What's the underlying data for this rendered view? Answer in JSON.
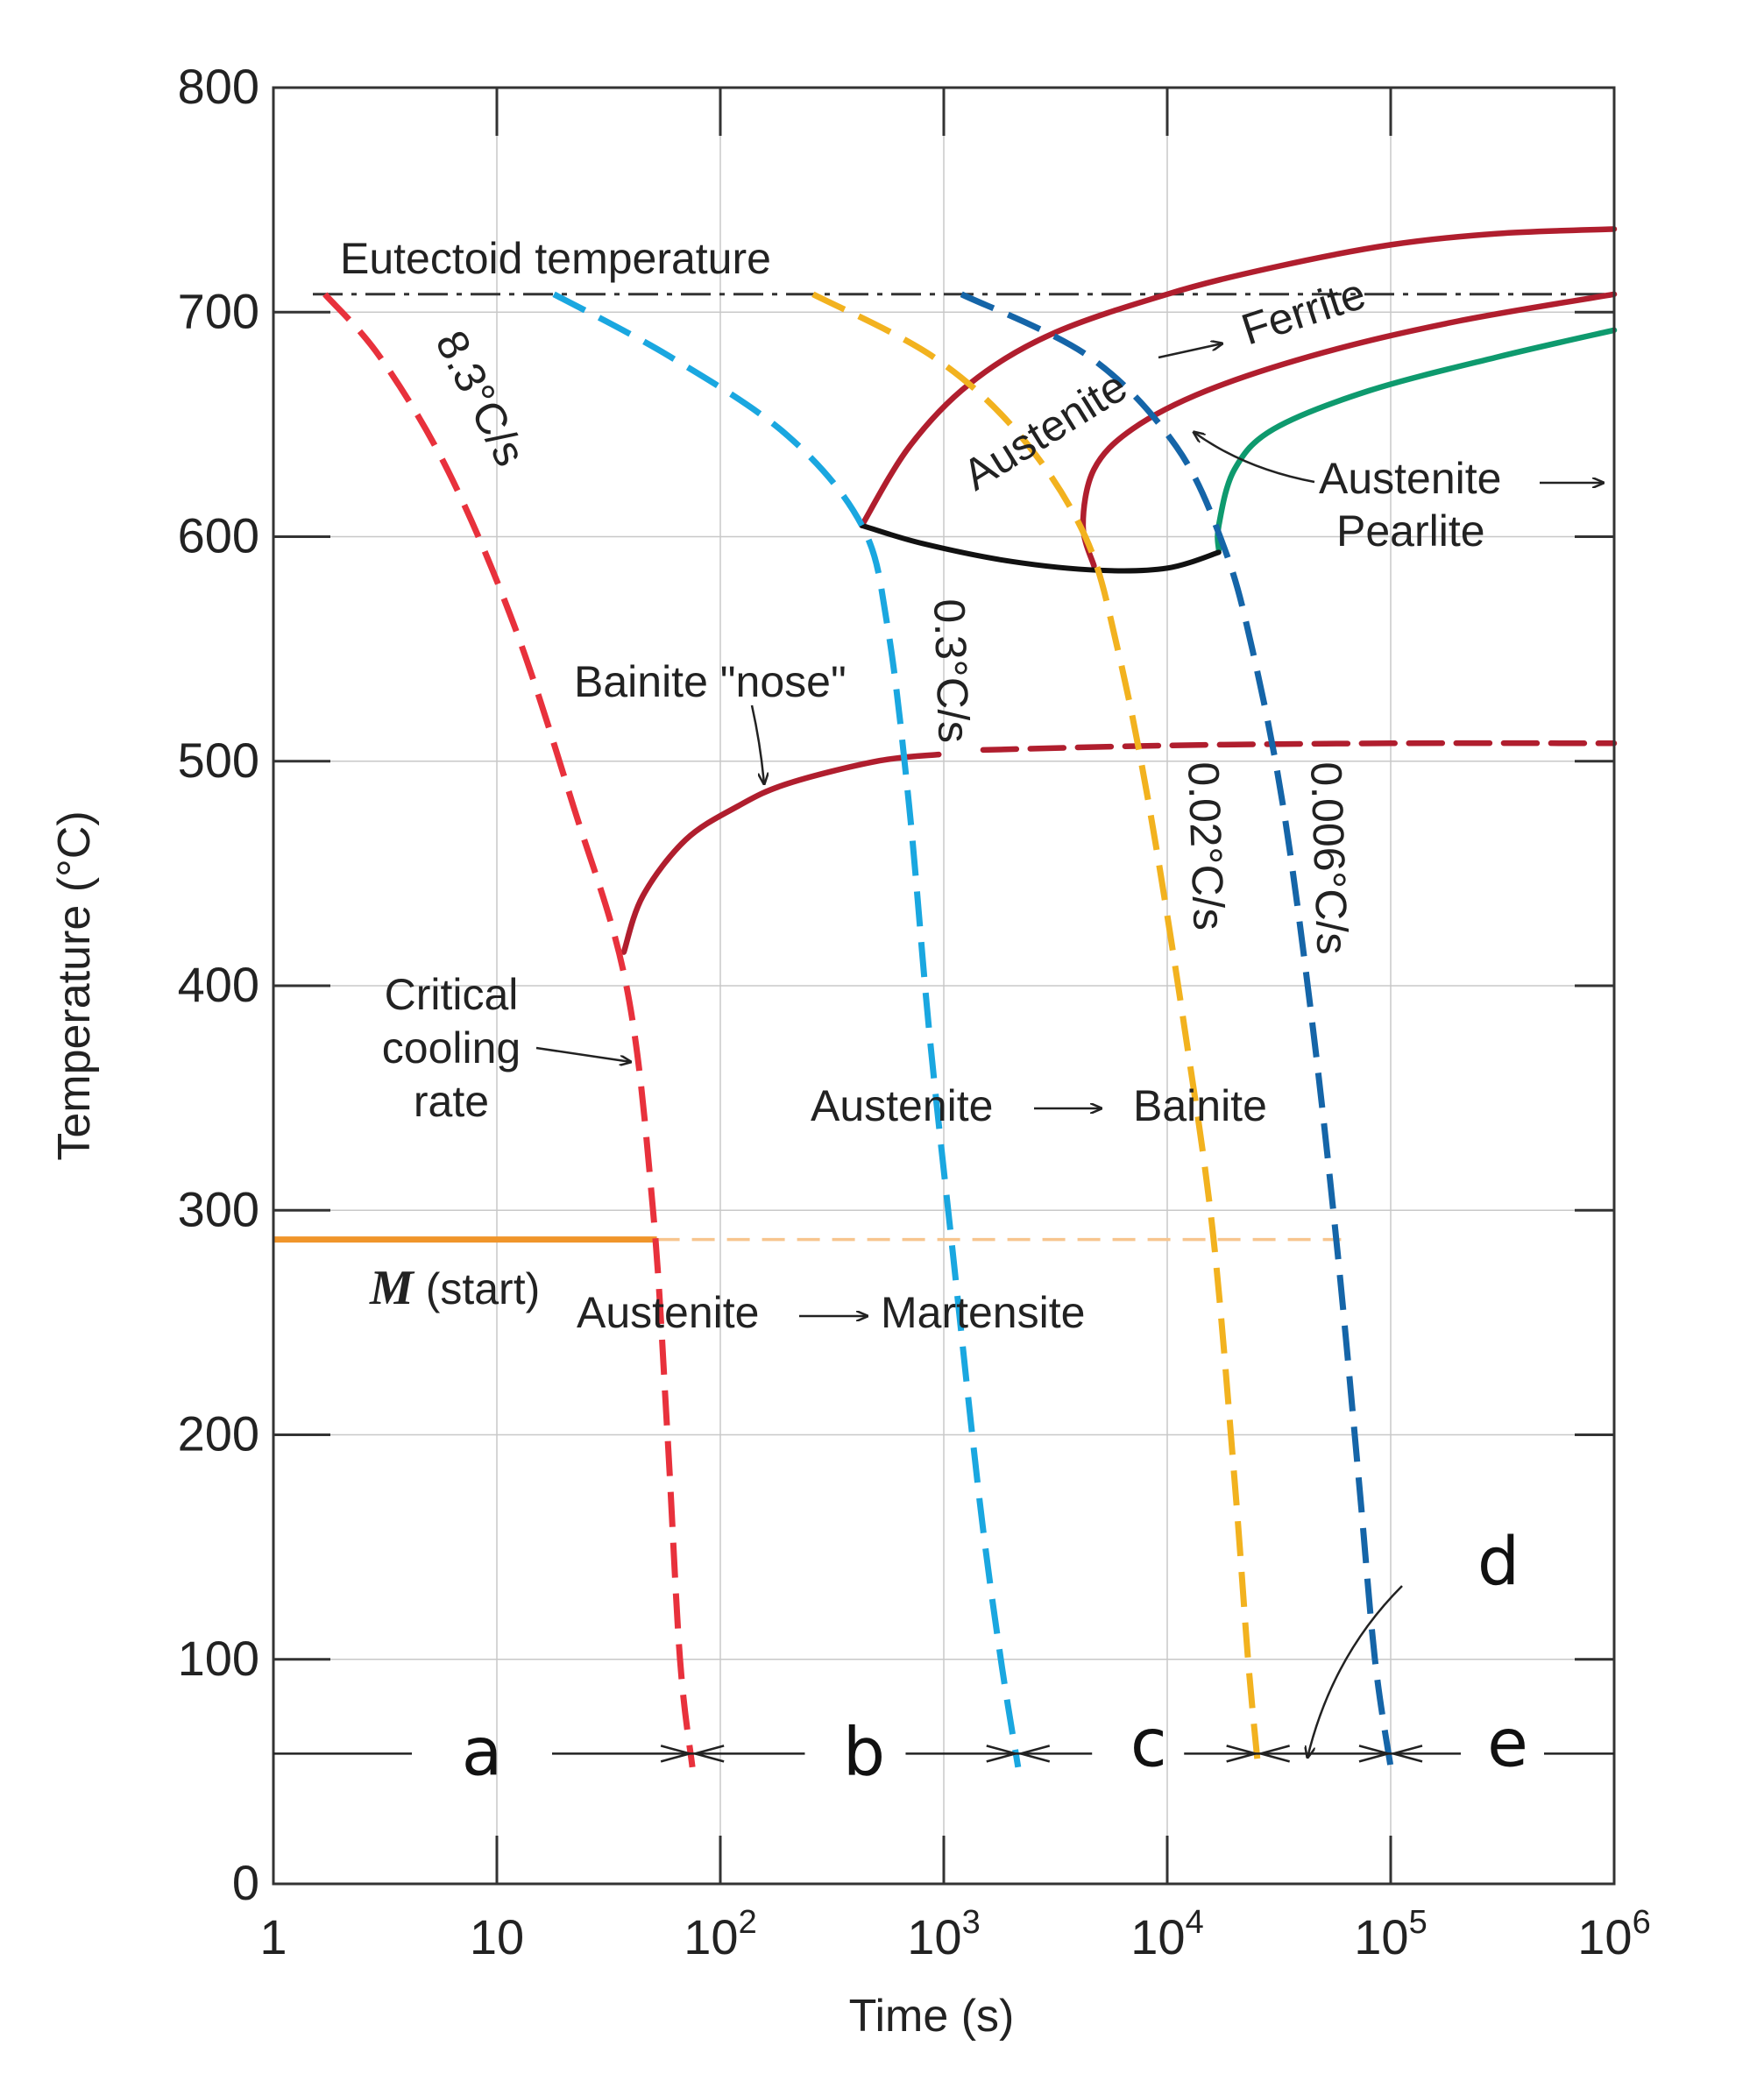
{
  "chart_data": {
    "type": "line",
    "title": "",
    "xlabel": "Time (s)",
    "ylabel": "Temperature (°C)",
    "xscale": "log",
    "xlim": [
      1,
      1000000
    ],
    "ylim": [
      0,
      800
    ],
    "x_ticks": [
      {
        "value": 1,
        "base": "1",
        "exp": ""
      },
      {
        "value": 10,
        "base": "10",
        "exp": ""
      },
      {
        "value": 100,
        "base": "10",
        "exp": "2"
      },
      {
        "value": 1000,
        "base": "10",
        "exp": "3"
      },
      {
        "value": 10000,
        "base": "10",
        "exp": "4"
      },
      {
        "value": 100000,
        "base": "10",
        "exp": "5"
      },
      {
        "value": 1000000,
        "base": "10",
        "exp": "6"
      }
    ],
    "y_ticks": [
      "0",
      "100",
      "200",
      "300",
      "400",
      "500",
      "600",
      "700",
      "800"
    ],
    "grid": true,
    "colors": {
      "red_cooling": "#e8313c",
      "cyan_cooling": "#1aa7e0",
      "yellow_cooling": "#f2b21f",
      "navy_cooling": "#1565a8",
      "transformation": "#b01e2e",
      "pearlite_start": "#0e9a6e",
      "boundary": "#111111",
      "m_start": "#f0952a",
      "m_start_dashed": "#f7c58e",
      "eutectoid": "#333333"
    },
    "cooling_curves": [
      {
        "name": "8.3°C/s",
        "color": "red_cooling",
        "points": [
          [
            1.7,
            708
          ],
          [
            3,
            680
          ],
          [
            6,
            630
          ],
          [
            12,
            560
          ],
          [
            22,
            480
          ],
          [
            38,
            400
          ],
          [
            50,
            300
          ],
          [
            58,
            200
          ],
          [
            66,
            100
          ],
          [
            75,
            52
          ]
        ]
      },
      {
        "name": "0.3°C/s",
        "color": "cyan_cooling",
        "points": [
          [
            18,
            708
          ],
          [
            60,
            680
          ],
          [
            200,
            645
          ],
          [
            430,
            605
          ],
          [
            560,
            560
          ],
          [
            700,
            480
          ],
          [
            860,
            380
          ],
          [
            1100,
            280
          ],
          [
            1450,
            170
          ],
          [
            1800,
            100
          ],
          [
            2150,
            52
          ]
        ]
      },
      {
        "name": "0.02°C/s",
        "color": "yellow_cooling",
        "points": [
          [
            260,
            708
          ],
          [
            900,
            680
          ],
          [
            2200,
            645
          ],
          [
            4300,
            600
          ],
          [
            6000,
            550
          ],
          [
            8300,
            480
          ],
          [
            12000,
            380
          ],
          [
            16000,
            290
          ],
          [
            20000,
            180
          ],
          [
            23000,
            100
          ],
          [
            25500,
            52
          ]
        ]
      },
      {
        "name": "0.006°C/s",
        "color": "navy_cooling",
        "points": [
          [
            1200,
            708
          ],
          [
            4500,
            680
          ],
          [
            11000,
            640
          ],
          [
            18000,
            595
          ],
          [
            24000,
            550
          ],
          [
            33000,
            480
          ],
          [
            45000,
            380
          ],
          [
            58000,
            280
          ],
          [
            72000,
            180
          ],
          [
            85000,
            100
          ],
          [
            100000,
            52
          ]
        ]
      }
    ],
    "transformation_curves": [
      {
        "name": "austenite_ferrite_start",
        "color": "transformation",
        "dashed": false,
        "points": [
          [
            430,
            605
          ],
          [
            700,
            640
          ],
          [
            1300,
            668
          ],
          [
            3000,
            690
          ],
          [
            10000,
            708
          ],
          [
            30000,
            720
          ],
          [
            100000,
            730
          ],
          [
            300000,
            735
          ],
          [
            1000000,
            737
          ]
        ]
      },
      {
        "name": "austenite_pearlite_start",
        "color": "transformation",
        "dashed": false,
        "points": [
          [
            4700,
            587
          ],
          [
            4200,
            605
          ],
          [
            4700,
            630
          ],
          [
            7000,
            648
          ],
          [
            15000,
            665
          ],
          [
            50000,
            682
          ],
          [
            200000,
            696
          ],
          [
            1000000,
            708
          ]
        ]
      },
      {
        "name": "pearlite_finish",
        "color": "pearlite_start",
        "dashed": false,
        "points": [
          [
            17000,
            594
          ],
          [
            17000,
            605
          ],
          [
            20000,
            630
          ],
          [
            30000,
            648
          ],
          [
            80000,
            665
          ],
          [
            300000,
            680
          ],
          [
            1000000,
            692
          ]
        ]
      },
      {
        "name": "bainite_nose",
        "color": "transformation",
        "dashed": false,
        "points": [
          [
            37,
            415
          ],
          [
            45,
            440
          ],
          [
            70,
            465
          ],
          [
            120,
            480
          ],
          [
            200,
            490
          ],
          [
            500,
            500
          ],
          [
            950,
            503
          ]
        ]
      },
      {
        "name": "bainite_extension",
        "color": "transformation",
        "dashed": true,
        "points": [
          [
            1500,
            505
          ],
          [
            10000,
            507
          ],
          [
            100000,
            508
          ],
          [
            1000000,
            508
          ]
        ]
      },
      {
        "name": "lower_boundary",
        "color": "boundary",
        "dashed": false,
        "points": [
          [
            430,
            605
          ],
          [
            800,
            597
          ],
          [
            2000,
            589
          ],
          [
            5000,
            585
          ],
          [
            10000,
            586
          ],
          [
            17000,
            593
          ]
        ]
      }
    ],
    "eutectoid": {
      "label": "Eutectoid temperature",
      "y": 708
    },
    "m_start": {
      "y": 287,
      "solid_until": 52,
      "dashed_until": 60000,
      "label_main": "M",
      "label_rest": " (start)"
    },
    "annotations": {
      "bainite_nose": "Bainite \"nose\"",
      "critical_line1": "Critical",
      "critical_line2": "cooling",
      "critical_line3": "rate",
      "aust_ferrite": "Austenite",
      "ferrite": "Ferrite",
      "aust_pearlite_line1": "Austenite",
      "aust_pearlite_line2": "Pearlite",
      "aust_bainite_a": "Austenite",
      "aust_bainite_b": "Bainite",
      "aust_martensite_a": "Austenite",
      "aust_martensite_b": "Martensite"
    },
    "regions": {
      "y": 58,
      "boundaries": [
        75,
        2150,
        25500,
        100000
      ],
      "labels": [
        {
          "text": "a"
        },
        {
          "text": "b"
        },
        {
          "text": "c"
        },
        {
          "text": "d"
        },
        {
          "text": "e"
        }
      ]
    }
  }
}
